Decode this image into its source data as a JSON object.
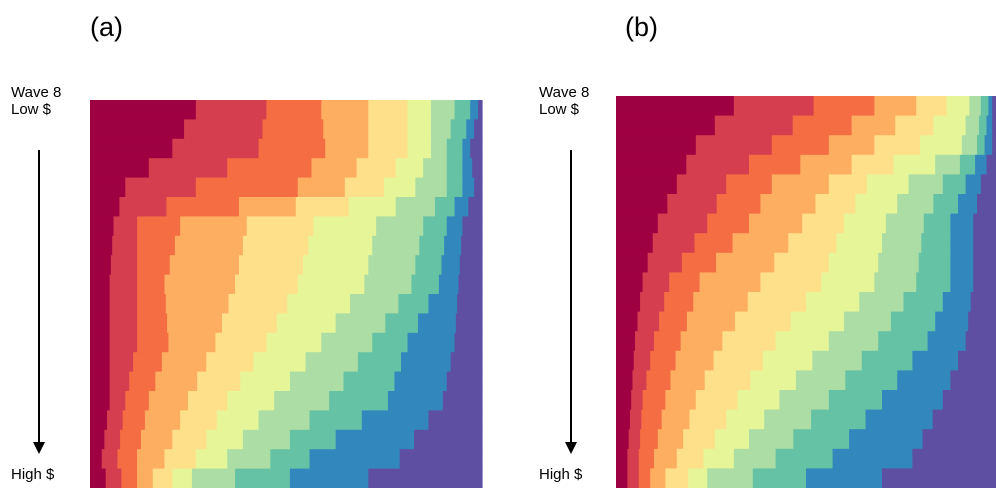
{
  "panels": [
    {
      "label": "(a)",
      "top_label_line1": "Wave 8",
      "top_label_line2": "Low $",
      "bottom_label": "High $"
    },
    {
      "label": "(b)",
      "top_label_line1": "Wave 8",
      "top_label_line2": "Low $",
      "bottom_label": "High $"
    }
  ],
  "colors": [
    "#9e0142",
    "#d53e4f",
    "#f46d43",
    "#fdae61",
    "#fee08b",
    "#e6f598",
    "#abdda4",
    "#66c2a5",
    "#3288bd",
    "#5e4fa2"
  ],
  "chart_data": [
    {
      "type": "stacked-bar-heatmap",
      "panel": "(a)",
      "row_count": 20,
      "segment_count": 10,
      "row_order": "top = Low $, bottom = High $",
      "proportions_key_rows": [
        {
          "row": 1,
          "boundaries": [
            0.27,
            0.45,
            0.59,
            0.71,
            0.81,
            0.87,
            0.93,
            0.97,
            0.99,
            1.0
          ]
        },
        {
          "row": 3,
          "boundaries": [
            0.21,
            0.43,
            0.6,
            0.71,
            0.81,
            0.87,
            0.91,
            0.95,
            0.97,
            1.0
          ]
        },
        {
          "row": 5,
          "boundaries": [
            0.09,
            0.27,
            0.53,
            0.65,
            0.75,
            0.83,
            0.91,
            0.95,
            0.98,
            1.0
          ]
        },
        {
          "row": 7,
          "boundaries": [
            0.06,
            0.12,
            0.23,
            0.4,
            0.57,
            0.73,
            0.85,
            0.91,
            0.95,
            1.0
          ]
        },
        {
          "row": 10,
          "boundaries": [
            0.05,
            0.12,
            0.19,
            0.37,
            0.53,
            0.7,
            0.82,
            0.89,
            0.94,
            1.0
          ]
        },
        {
          "row": 13,
          "boundaries": [
            0.05,
            0.12,
            0.2,
            0.32,
            0.45,
            0.59,
            0.72,
            0.81,
            0.93,
            1.0
          ]
        },
        {
          "row": 16,
          "boundaries": [
            0.05,
            0.09,
            0.15,
            0.25,
            0.35,
            0.47,
            0.61,
            0.76,
            0.9,
            1.0
          ]
        },
        {
          "row": 19,
          "boundaries": [
            0.03,
            0.07,
            0.12,
            0.19,
            0.27,
            0.35,
            0.46,
            0.56,
            0.79,
            1.0
          ]
        },
        {
          "row": 20,
          "boundaries": [
            0.04,
            0.08,
            0.12,
            0.16,
            0.21,
            0.26,
            0.37,
            0.51,
            0.71,
            1.0
          ]
        }
      ]
    },
    {
      "type": "stacked-bar-heatmap",
      "panel": "(b)",
      "row_count": 20,
      "segment_count": 10,
      "row_order": "top = Low $, bottom = High $",
      "proportions_key_rows": [
        {
          "row": 1,
          "boundaries": [
            0.31,
            0.52,
            0.68,
            0.79,
            0.87,
            0.93,
            0.96,
            0.98,
            0.99,
            1.0
          ]
        },
        {
          "row": 3,
          "boundaries": [
            0.21,
            0.41,
            0.56,
            0.68,
            0.8,
            0.91,
            0.95,
            0.97,
            0.99,
            1.0
          ]
        },
        {
          "row": 5,
          "boundaries": [
            0.16,
            0.29,
            0.41,
            0.56,
            0.66,
            0.77,
            0.86,
            0.92,
            0.96,
            1.0
          ]
        },
        {
          "row": 7,
          "boundaries": [
            0.11,
            0.24,
            0.35,
            0.49,
            0.6,
            0.71,
            0.81,
            0.88,
            0.94,
            1.0
          ]
        },
        {
          "row": 10,
          "boundaries": [
            0.07,
            0.14,
            0.22,
            0.38,
            0.54,
            0.68,
            0.79,
            0.88,
            0.94,
            1.0
          ]
        },
        {
          "row": 13,
          "boundaries": [
            0.05,
            0.1,
            0.17,
            0.28,
            0.42,
            0.56,
            0.69,
            0.82,
            0.92,
            1.0
          ]
        },
        {
          "row": 16,
          "boundaries": [
            0.04,
            0.07,
            0.13,
            0.21,
            0.32,
            0.43,
            0.56,
            0.7,
            0.86,
            1.0
          ]
        },
        {
          "row": 19,
          "boundaries": [
            0.03,
            0.06,
            0.1,
            0.16,
            0.23,
            0.31,
            0.42,
            0.57,
            0.78,
            1.0
          ]
        },
        {
          "row": 20,
          "boundaries": [
            0.03,
            0.06,
            0.09,
            0.13,
            0.19,
            0.24,
            0.36,
            0.5,
            0.7,
            1.0
          ]
        }
      ]
    }
  ]
}
